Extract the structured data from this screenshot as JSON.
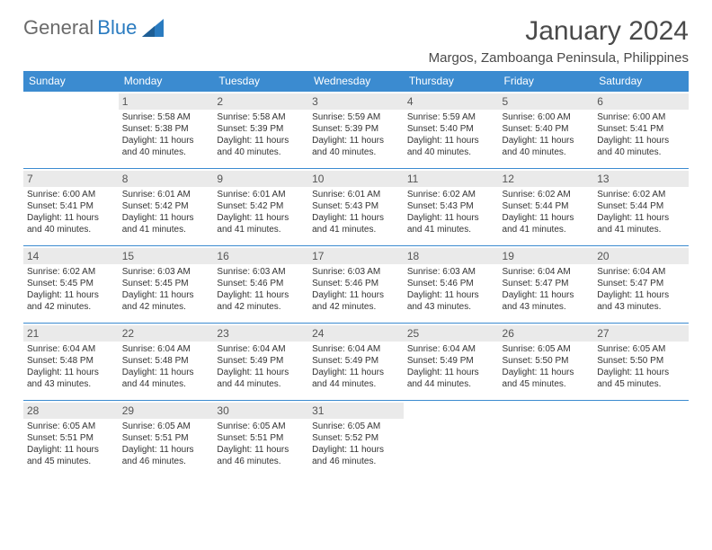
{
  "logo": {
    "text_general": "General",
    "text_blue": "Blue"
  },
  "month_title": "January 2024",
  "location": "Margos, Zamboanga Peninsula, Philippines",
  "days_of_week": [
    "Sunday",
    "Monday",
    "Tuesday",
    "Wednesday",
    "Thursday",
    "Friday",
    "Saturday"
  ],
  "colors": {
    "header_bg": "#3b8bd0",
    "header_text": "#ffffff",
    "daynum_bg": "#eaeaea",
    "border": "#3b8bd0",
    "text": "#333333"
  },
  "first_weekday_index": 1,
  "cells": [
    {
      "n": "1",
      "sr": "Sunrise: 5:58 AM",
      "ss": "Sunset: 5:38 PM",
      "d1": "Daylight: 11 hours",
      "d2": "and 40 minutes."
    },
    {
      "n": "2",
      "sr": "Sunrise: 5:58 AM",
      "ss": "Sunset: 5:39 PM",
      "d1": "Daylight: 11 hours",
      "d2": "and 40 minutes."
    },
    {
      "n": "3",
      "sr": "Sunrise: 5:59 AM",
      "ss": "Sunset: 5:39 PM",
      "d1": "Daylight: 11 hours",
      "d2": "and 40 minutes."
    },
    {
      "n": "4",
      "sr": "Sunrise: 5:59 AM",
      "ss": "Sunset: 5:40 PM",
      "d1": "Daylight: 11 hours",
      "d2": "and 40 minutes."
    },
    {
      "n": "5",
      "sr": "Sunrise: 6:00 AM",
      "ss": "Sunset: 5:40 PM",
      "d1": "Daylight: 11 hours",
      "d2": "and 40 minutes."
    },
    {
      "n": "6",
      "sr": "Sunrise: 6:00 AM",
      "ss": "Sunset: 5:41 PM",
      "d1": "Daylight: 11 hours",
      "d2": "and 40 minutes."
    },
    {
      "n": "7",
      "sr": "Sunrise: 6:00 AM",
      "ss": "Sunset: 5:41 PM",
      "d1": "Daylight: 11 hours",
      "d2": "and 40 minutes."
    },
    {
      "n": "8",
      "sr": "Sunrise: 6:01 AM",
      "ss": "Sunset: 5:42 PM",
      "d1": "Daylight: 11 hours",
      "d2": "and 41 minutes."
    },
    {
      "n": "9",
      "sr": "Sunrise: 6:01 AM",
      "ss": "Sunset: 5:42 PM",
      "d1": "Daylight: 11 hours",
      "d2": "and 41 minutes."
    },
    {
      "n": "10",
      "sr": "Sunrise: 6:01 AM",
      "ss": "Sunset: 5:43 PM",
      "d1": "Daylight: 11 hours",
      "d2": "and 41 minutes."
    },
    {
      "n": "11",
      "sr": "Sunrise: 6:02 AM",
      "ss": "Sunset: 5:43 PM",
      "d1": "Daylight: 11 hours",
      "d2": "and 41 minutes."
    },
    {
      "n": "12",
      "sr": "Sunrise: 6:02 AM",
      "ss": "Sunset: 5:44 PM",
      "d1": "Daylight: 11 hours",
      "d2": "and 41 minutes."
    },
    {
      "n": "13",
      "sr": "Sunrise: 6:02 AM",
      "ss": "Sunset: 5:44 PM",
      "d1": "Daylight: 11 hours",
      "d2": "and 41 minutes."
    },
    {
      "n": "14",
      "sr": "Sunrise: 6:02 AM",
      "ss": "Sunset: 5:45 PM",
      "d1": "Daylight: 11 hours",
      "d2": "and 42 minutes."
    },
    {
      "n": "15",
      "sr": "Sunrise: 6:03 AM",
      "ss": "Sunset: 5:45 PM",
      "d1": "Daylight: 11 hours",
      "d2": "and 42 minutes."
    },
    {
      "n": "16",
      "sr": "Sunrise: 6:03 AM",
      "ss": "Sunset: 5:46 PM",
      "d1": "Daylight: 11 hours",
      "d2": "and 42 minutes."
    },
    {
      "n": "17",
      "sr": "Sunrise: 6:03 AM",
      "ss": "Sunset: 5:46 PM",
      "d1": "Daylight: 11 hours",
      "d2": "and 42 minutes."
    },
    {
      "n": "18",
      "sr": "Sunrise: 6:03 AM",
      "ss": "Sunset: 5:46 PM",
      "d1": "Daylight: 11 hours",
      "d2": "and 43 minutes."
    },
    {
      "n": "19",
      "sr": "Sunrise: 6:04 AM",
      "ss": "Sunset: 5:47 PM",
      "d1": "Daylight: 11 hours",
      "d2": "and 43 minutes."
    },
    {
      "n": "20",
      "sr": "Sunrise: 6:04 AM",
      "ss": "Sunset: 5:47 PM",
      "d1": "Daylight: 11 hours",
      "d2": "and 43 minutes."
    },
    {
      "n": "21",
      "sr": "Sunrise: 6:04 AM",
      "ss": "Sunset: 5:48 PM",
      "d1": "Daylight: 11 hours",
      "d2": "and 43 minutes."
    },
    {
      "n": "22",
      "sr": "Sunrise: 6:04 AM",
      "ss": "Sunset: 5:48 PM",
      "d1": "Daylight: 11 hours",
      "d2": "and 44 minutes."
    },
    {
      "n": "23",
      "sr": "Sunrise: 6:04 AM",
      "ss": "Sunset: 5:49 PM",
      "d1": "Daylight: 11 hours",
      "d2": "and 44 minutes."
    },
    {
      "n": "24",
      "sr": "Sunrise: 6:04 AM",
      "ss": "Sunset: 5:49 PM",
      "d1": "Daylight: 11 hours",
      "d2": "and 44 minutes."
    },
    {
      "n": "25",
      "sr": "Sunrise: 6:04 AM",
      "ss": "Sunset: 5:49 PM",
      "d1": "Daylight: 11 hours",
      "d2": "and 44 minutes."
    },
    {
      "n": "26",
      "sr": "Sunrise: 6:05 AM",
      "ss": "Sunset: 5:50 PM",
      "d1": "Daylight: 11 hours",
      "d2": "and 45 minutes."
    },
    {
      "n": "27",
      "sr": "Sunrise: 6:05 AM",
      "ss": "Sunset: 5:50 PM",
      "d1": "Daylight: 11 hours",
      "d2": "and 45 minutes."
    },
    {
      "n": "28",
      "sr": "Sunrise: 6:05 AM",
      "ss": "Sunset: 5:51 PM",
      "d1": "Daylight: 11 hours",
      "d2": "and 45 minutes."
    },
    {
      "n": "29",
      "sr": "Sunrise: 6:05 AM",
      "ss": "Sunset: 5:51 PM",
      "d1": "Daylight: 11 hours",
      "d2": "and 46 minutes."
    },
    {
      "n": "30",
      "sr": "Sunrise: 6:05 AM",
      "ss": "Sunset: 5:51 PM",
      "d1": "Daylight: 11 hours",
      "d2": "and 46 minutes."
    },
    {
      "n": "31",
      "sr": "Sunrise: 6:05 AM",
      "ss": "Sunset: 5:52 PM",
      "d1": "Daylight: 11 hours",
      "d2": "and 46 minutes."
    }
  ]
}
